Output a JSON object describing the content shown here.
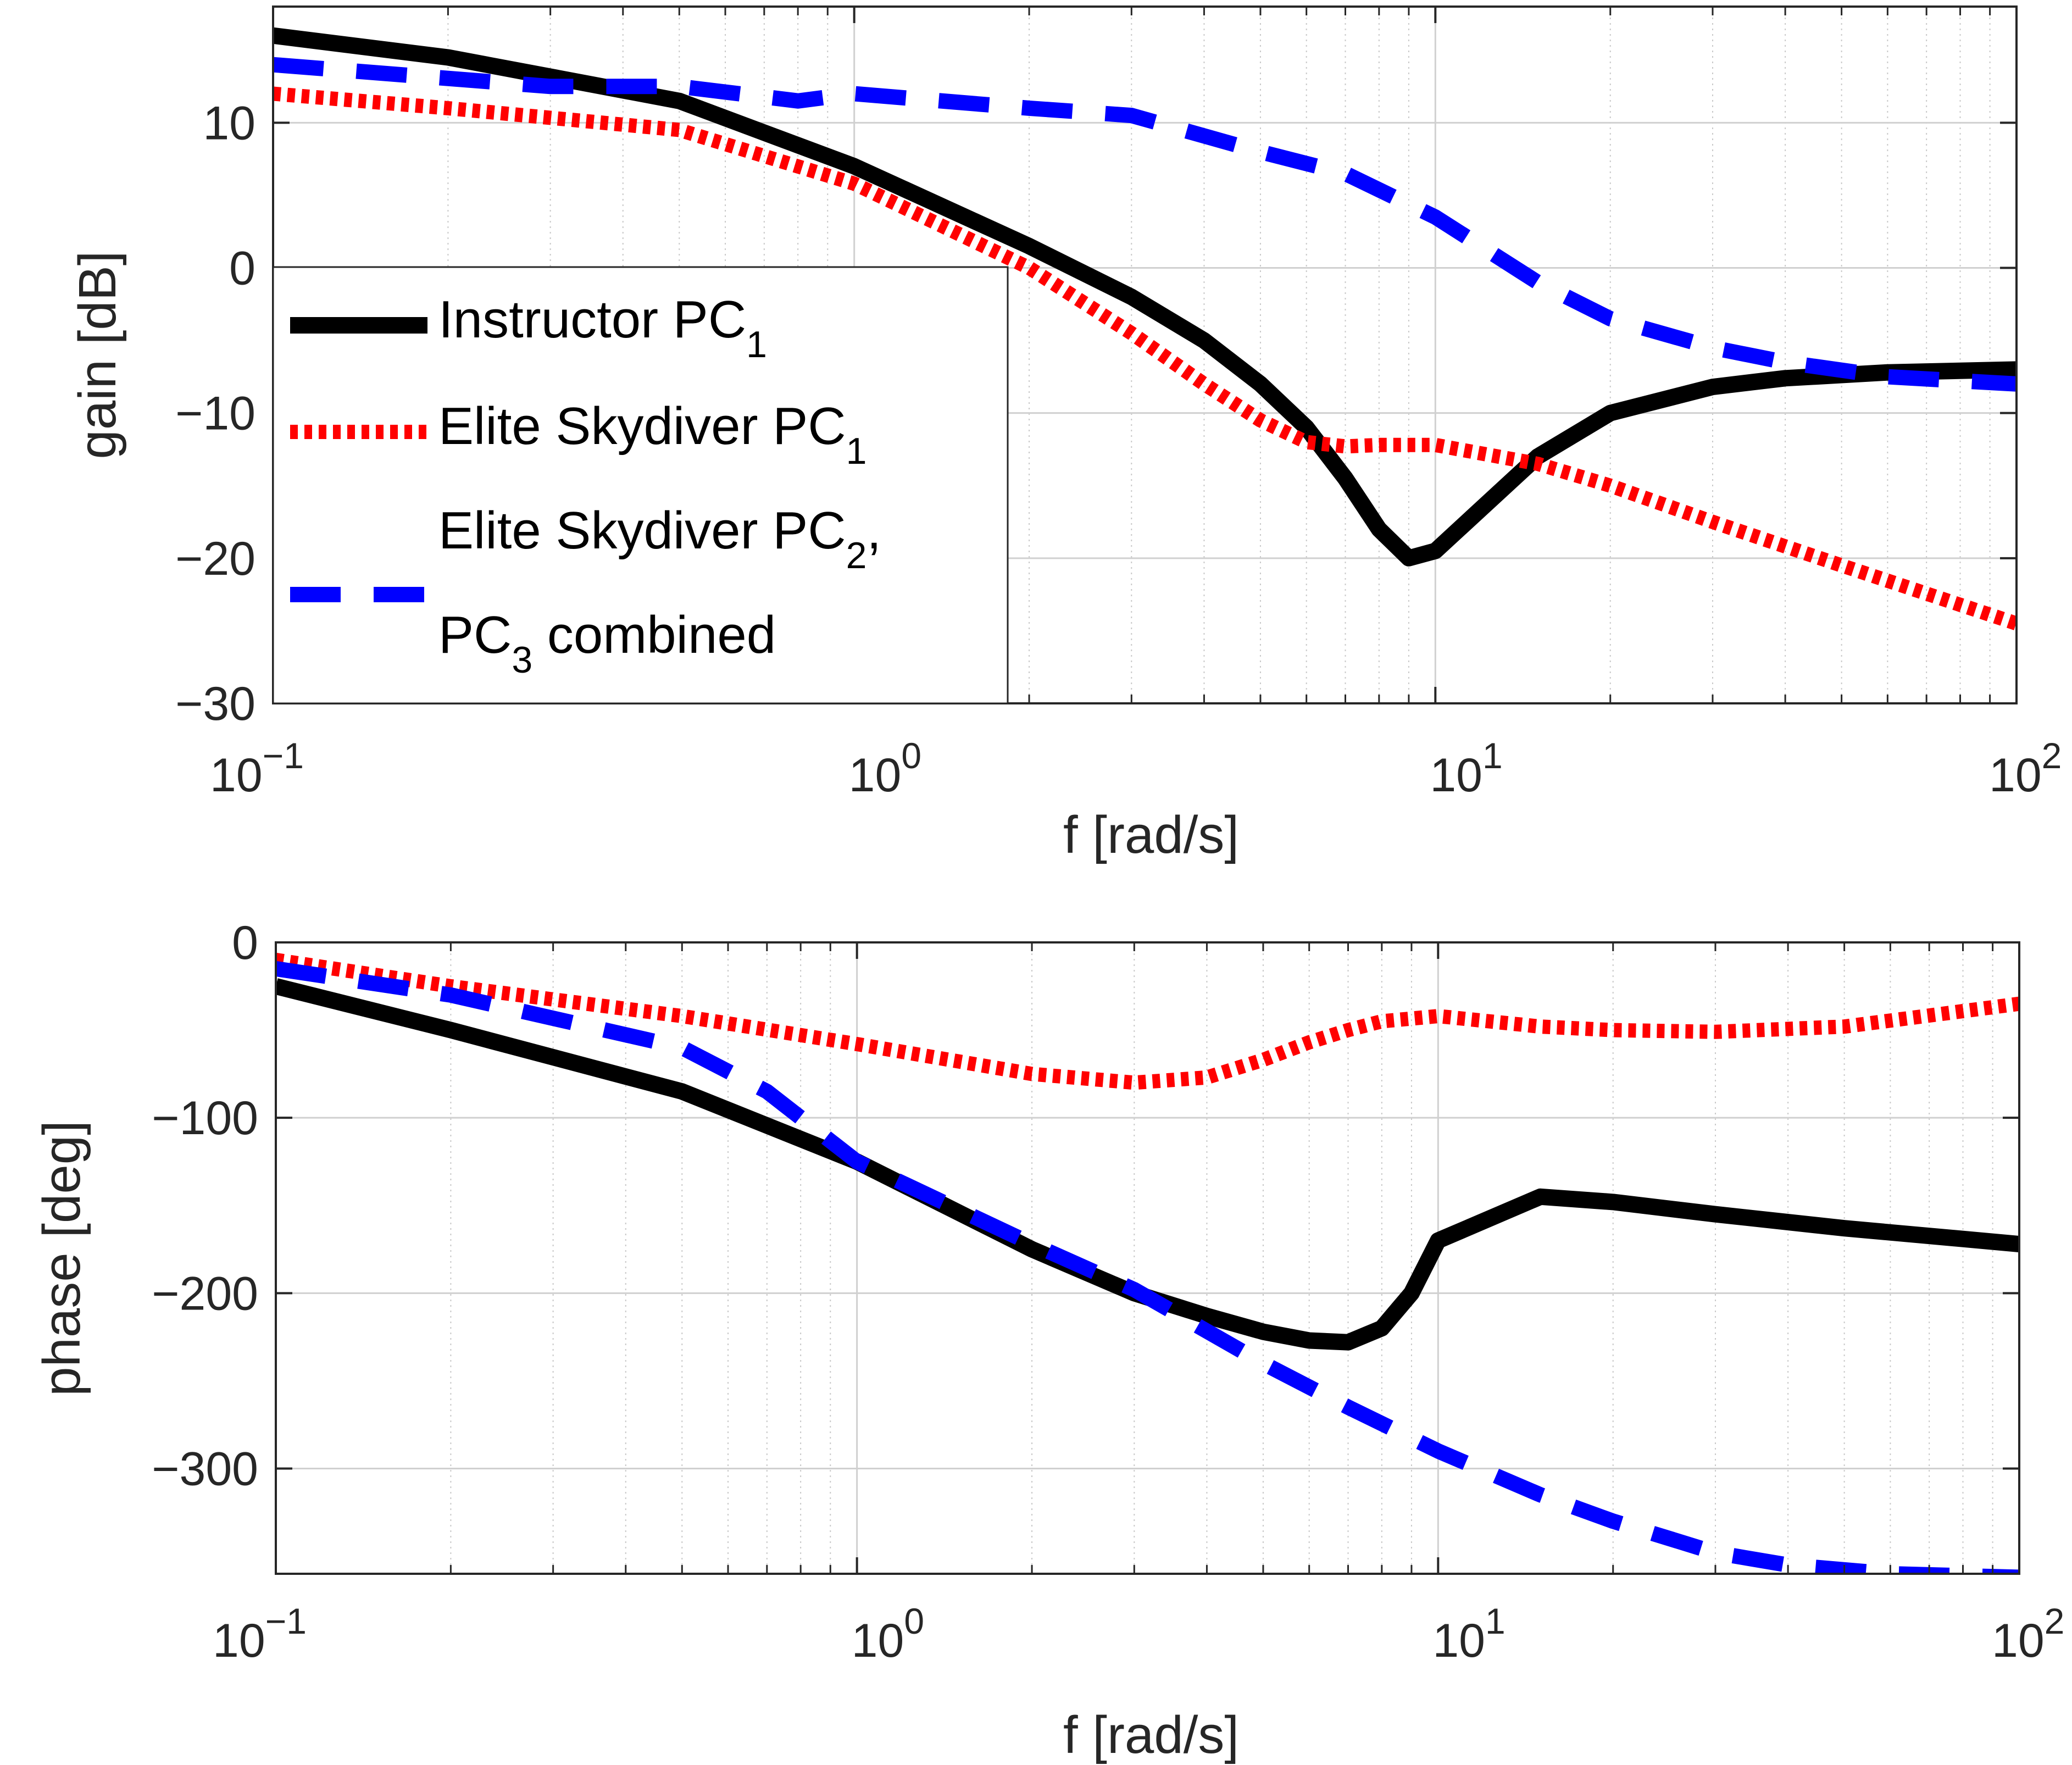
{
  "chart_data": [
    {
      "type": "line",
      "panel": "gain",
      "xscale": "log",
      "xlim": [
        0.1,
        100
      ],
      "ylim": [
        -30,
        18
      ],
      "xlabel": "f [rad/s]",
      "ylabel": "gain [dB]",
      "xticks": [
        {
          "value": 0.1,
          "base": "10",
          "exp": "−1"
        },
        {
          "value": 1,
          "base": "10",
          "exp": "0"
        },
        {
          "value": 10,
          "base": "10",
          "exp": "1"
        },
        {
          "value": 100,
          "base": "10",
          "exp": "2"
        }
      ],
      "yticks": [
        {
          "value": 10,
          "label": "10"
        },
        {
          "value": 0,
          "label": "0"
        },
        {
          "value": -10,
          "label": "−10"
        },
        {
          "value": -20,
          "label": "−20"
        },
        {
          "value": -30,
          "label": "−30"
        }
      ],
      "grid": true,
      "legend": {
        "placement": "bottom-left",
        "entries": [
          {
            "series": 0,
            "lines": [
              {
                "text": "Instructor PC",
                "sub": "1"
              }
            ]
          },
          {
            "series": 1,
            "lines": [
              {
                "text": "Elite Skydiver PC",
                "sub": "1"
              }
            ]
          },
          {
            "series": 2,
            "lines": [
              {
                "text": "Elite Skydiver PC",
                "sub": "2",
                "after": ","
              },
              {
                "text": "PC",
                "sub": "3",
                "after": " combined"
              }
            ]
          }
        ]
      },
      "series": [
        {
          "name": "Instructor PC1",
          "color": "#000000",
          "style": "solid",
          "x": [
            0.1,
            0.2,
            0.5,
            1,
            2,
            3,
            4,
            5,
            6,
            7,
            8,
            9,
            10,
            15,
            20,
            30,
            40,
            60,
            100
          ],
          "y": [
            16,
            14.5,
            11.5,
            7,
            1.5,
            -2,
            -5,
            -8,
            -11,
            -14.5,
            -18,
            -20,
            -19.5,
            -13,
            -10,
            -8.2,
            -7.6,
            -7.2,
            -7
          ]
        },
        {
          "name": "Elite Skydiver PC1",
          "color": "#ff0000",
          "style": "dotted",
          "x": [
            0.1,
            0.2,
            0.5,
            1,
            2,
            3,
            4,
            5,
            6,
            7,
            8,
            10,
            15,
            20,
            30,
            50,
            100
          ],
          "y": [
            12,
            11,
            9.5,
            5.8,
            0,
            -4.5,
            -8,
            -10.5,
            -12,
            -12.3,
            -12.2,
            -12.2,
            -13.5,
            -15,
            -17.5,
            -20.5,
            -24.5
          ]
        },
        {
          "name": "Elite Skydiver PC2, PC3 combined",
          "color": "#0000ff",
          "style": "dashed",
          "x": [
            0.1,
            0.3,
            0.5,
            0.8,
            1,
            2,
            3,
            5,
            7,
            10,
            15,
            20,
            30,
            40,
            60,
            100
          ],
          "y": [
            14,
            12.5,
            12.5,
            11.5,
            12,
            11,
            10.5,
            8,
            6.5,
            3.5,
            -1,
            -3.5,
            -5.5,
            -6.5,
            -7.5,
            -8
          ]
        }
      ]
    },
    {
      "type": "line",
      "panel": "phase",
      "xscale": "log",
      "xlim": [
        0.1,
        100
      ],
      "ylim": [
        -360,
        0
      ],
      "xlabel": "f [rad/s]",
      "ylabel": "phase [deg]",
      "xticks": [
        {
          "value": 0.1,
          "base": "10",
          "exp": "−1"
        },
        {
          "value": 1,
          "base": "10",
          "exp": "0"
        },
        {
          "value": 10,
          "base": "10",
          "exp": "1"
        },
        {
          "value": 100,
          "base": "10",
          "exp": "2"
        }
      ],
      "yticks": [
        {
          "value": 0,
          "label": "0"
        },
        {
          "value": -100,
          "label": "−100"
        },
        {
          "value": -200,
          "label": "−200"
        },
        {
          "value": -300,
          "label": "−300"
        }
      ],
      "grid": true,
      "series": [
        {
          "name": "Instructor PC1",
          "color": "#000000",
          "style": "solid",
          "x": [
            0.1,
            0.2,
            0.5,
            1,
            2,
            3,
            4,
            5,
            6,
            7,
            8,
            9,
            10,
            15,
            20,
            30,
            50,
            100
          ],
          "y": [
            -25,
            -50,
            -85,
            -125,
            -175,
            -200,
            -213,
            -222,
            -227,
            -228,
            -220,
            -200,
            -170,
            -145,
            -148,
            -155,
            -163,
            -172
          ]
        },
        {
          "name": "Elite Skydiver PC1",
          "color": "#ff0000",
          "style": "dotted",
          "x": [
            0.1,
            0.2,
            0.5,
            1,
            2,
            3,
            4,
            5,
            6,
            7,
            8,
            10,
            15,
            20,
            30,
            50,
            100
          ],
          "y": [
            -10,
            -25,
            -42,
            -58,
            -75,
            -80,
            -77,
            -67,
            -57,
            -50,
            -45,
            -42,
            -48,
            -50,
            -51,
            -48,
            -35
          ]
        },
        {
          "name": "Elite Skydiver PC2, PC3 combined",
          "color": "#0000ff",
          "style": "dashed",
          "x": [
            0.1,
            0.2,
            0.5,
            0.7,
            1,
            2,
            3,
            5,
            7,
            10,
            15,
            20,
            30,
            40,
            60,
            100
          ],
          "y": [
            -15,
            -30,
            -60,
            -85,
            -125,
            -172,
            -198,
            -240,
            -265,
            -290,
            -315,
            -330,
            -348,
            -355,
            -360,
            -362
          ]
        }
      ]
    }
  ]
}
